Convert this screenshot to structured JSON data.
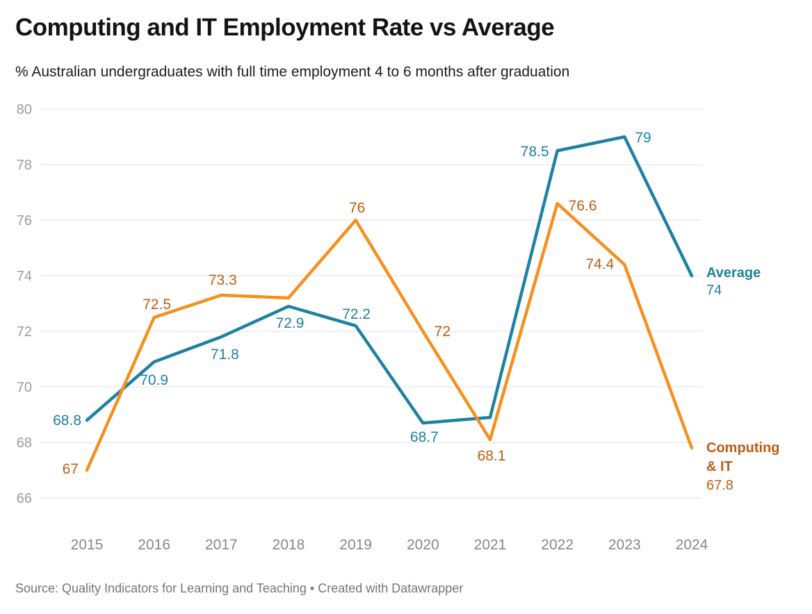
{
  "header": {
    "title": "Computing and IT Employment Rate vs Average",
    "subtitle": "% Australian undergraduates with full time employment 4 to 6 months after graduation"
  },
  "footer": {
    "source": "Source: Quality Indicators for Learning and Teaching • Created with Datawrapper"
  },
  "colors": {
    "average_line": "#1d81a2",
    "average_label": "#1d81a2",
    "computing_line": "#f78f1e",
    "computing_label": "#c05c11",
    "gridline": "#e6e6e6",
    "y_tick_text": "#9b9b9b",
    "x_tick_text": "#878787"
  },
  "chart_data": {
    "type": "line",
    "title": "Computing and IT Employment Rate vs Average",
    "subtitle": "% Australian undergraduates with full time employment 4 to 6 months after graduation",
    "xlabel": "",
    "ylabel": "",
    "x": [
      2015,
      2016,
      2017,
      2018,
      2019,
      2020,
      2021,
      2022,
      2023,
      2024
    ],
    "ylim": [
      66,
      80
    ],
    "yticks": [
      66,
      68,
      70,
      72,
      74,
      76,
      78,
      80
    ],
    "grid": "horizontal",
    "legend_position": "right-end-labels",
    "series": [
      {
        "name": "Average",
        "color": "#1d81a2",
        "label_color": "#1d81a2",
        "values": [
          68.8,
          70.9,
          71.8,
          72.9,
          72.2,
          68.7,
          68.9,
          78.5,
          79,
          74
        ],
        "point_labels": [
          "68.8",
          "70.9",
          "71.8",
          "72.9",
          "72.2",
          "68.7",
          "",
          "78.5",
          "79",
          ""
        ],
        "end_label": {
          "lines": [
            "Average"
          ],
          "value": "74"
        }
      },
      {
        "name": "Computing & IT",
        "color": "#f78f1e",
        "label_color": "#c05c11",
        "values": [
          67,
          72.5,
          73.3,
          73.2,
          76,
          72,
          68.1,
          76.6,
          74.4,
          67.8
        ],
        "point_labels": [
          "67",
          "72.5",
          "73.3",
          "",
          "76",
          "72",
          "68.1",
          "76.6",
          "74.4",
          ""
        ],
        "end_label": {
          "lines": [
            "Computing",
            "& IT"
          ],
          "value": "67.8"
        }
      }
    ]
  }
}
